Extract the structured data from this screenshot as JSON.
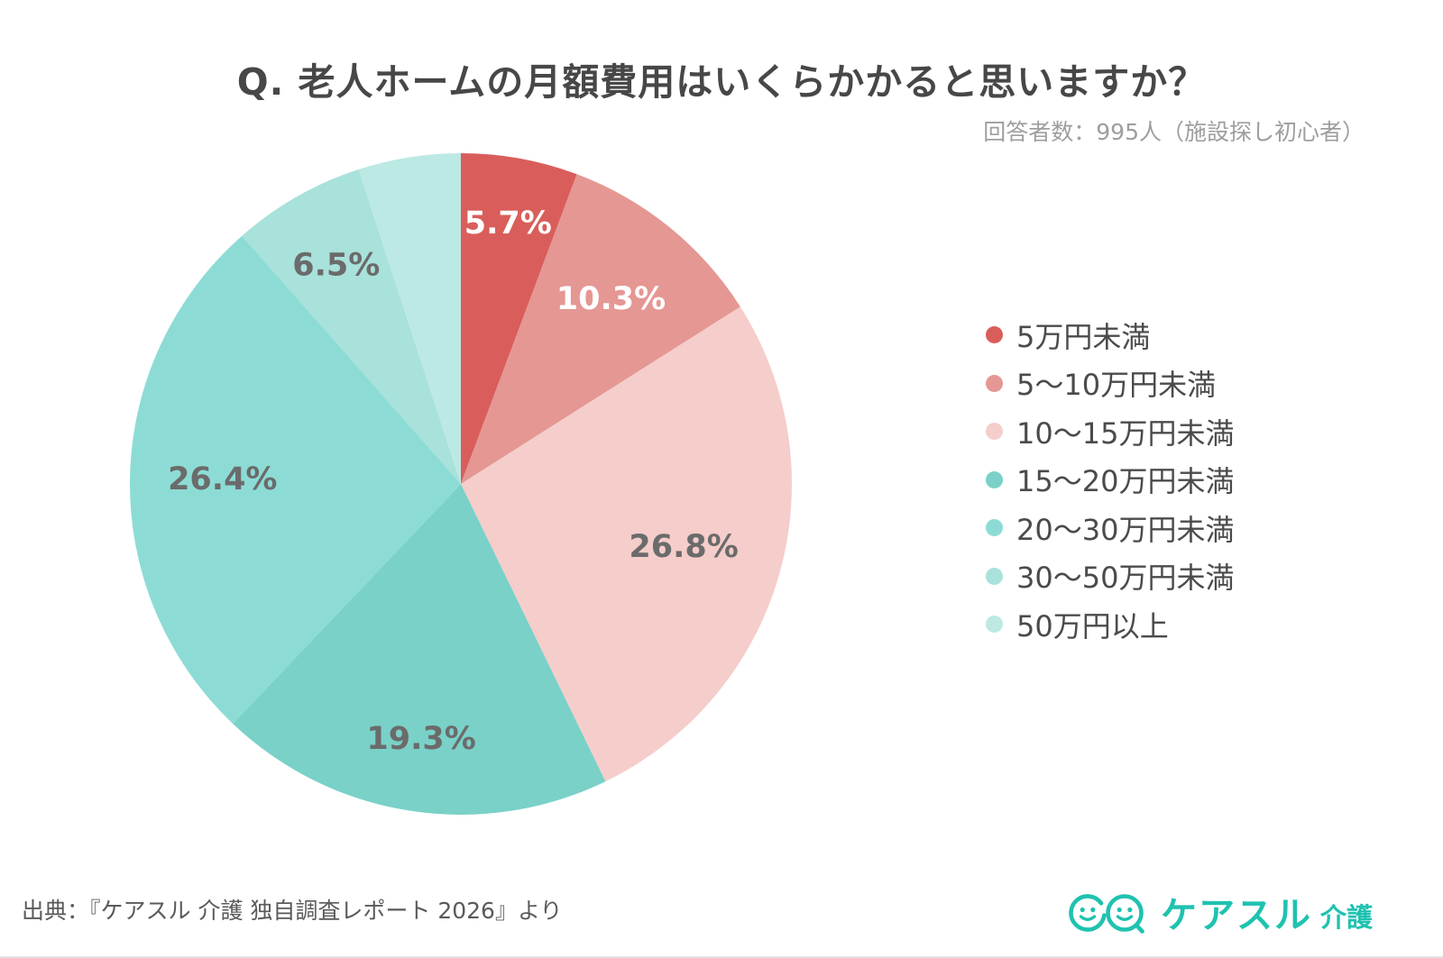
{
  "page": {
    "title": "Q. 老人ホームの月額費用はいくらかかると思いますか？",
    "respondents_note": "回答者数：995人（施設探し初心者）",
    "source_note": "出典：『ケアスル 介護 独自調査レポート 2026』より",
    "logo": {
      "brand": "ケアスル",
      "suffix": "介護",
      "color": "#1fc2b0"
    }
  },
  "chart_data": {
    "type": "pie",
    "title": "Q. 老人ホームの月額費用はいくらかかると思いますか？",
    "start_angle_deg": 0,
    "direction": "clockwise",
    "legend_position": "right",
    "total": 100.0,
    "slices": [
      {
        "label": "5万円未満",
        "value": 5.7,
        "color": "#d95e5b",
        "pct_label": "5.7%",
        "pct_label_color": "#ffffff"
      },
      {
        "label": "5～10万円未満",
        "value": 10.3,
        "color": "#e59793",
        "pct_label": "10.3%",
        "pct_label_color": "#ffffff"
      },
      {
        "label": "10～15万円未満",
        "value": 26.8,
        "color": "#f5cdcb",
        "pct_label": "26.8%",
        "pct_label_color": "#6b6b6b"
      },
      {
        "label": "15～20万円未満",
        "value": 19.3,
        "color": "#7ad1c8",
        "pct_label": "19.3%",
        "pct_label_color": "#6b6b6b"
      },
      {
        "label": "20～30万円未満",
        "value": 26.4,
        "color": "#8cdcd5",
        "pct_label": "26.4%",
        "pct_label_color": "#6b6b6b"
      },
      {
        "label": "30～50万円未満",
        "value": 6.5,
        "color": "#a9e1db",
        "pct_label": "6.5%",
        "pct_label_color": "#6b6b6b"
      },
      {
        "label": "50万円以上",
        "value": 5.0,
        "color": "#bce9e4",
        "pct_label": "",
        "pct_label_color": null
      }
    ]
  }
}
